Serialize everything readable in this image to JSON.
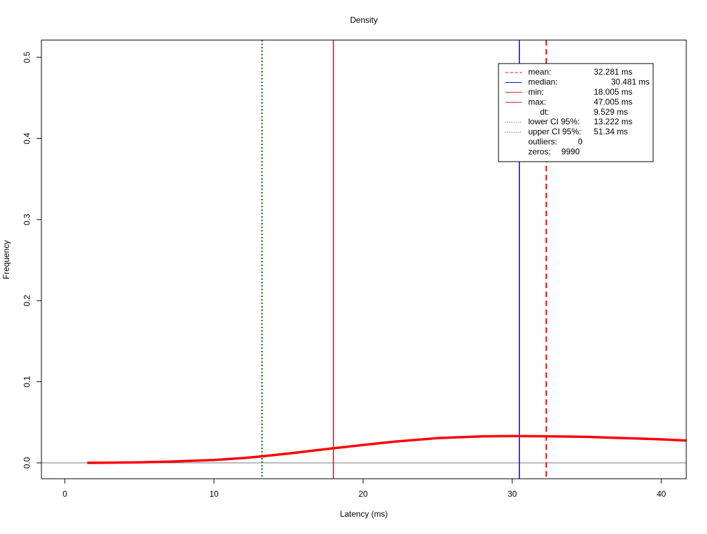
{
  "chart_data": {
    "type": "density",
    "title": "Density",
    "x_label": "Latency (ms)",
    "y_label": "Frequency",
    "xlim": [
      -1.57,
      41.67
    ],
    "ylim": [
      -0.0196,
      0.5213
    ],
    "xticks": [
      0,
      10,
      20,
      30,
      40
    ],
    "yticks": [
      {
        "value": 0,
        "label": "0.0"
      },
      0.1,
      0.2,
      0.3,
      0.4,
      0.5
    ],
    "series": [
      {
        "name": "density",
        "color": "#ff0000",
        "x": [
          1.5,
          3,
          5,
          7,
          10,
          12,
          13.2,
          15,
          18,
          20,
          22,
          25,
          28,
          30,
          32,
          35,
          38,
          40,
          41.67
        ],
        "values": [
          0.0,
          0.0002,
          0.0006,
          0.0015,
          0.0035,
          0.006,
          0.008,
          0.0115,
          0.018,
          0.022,
          0.026,
          0.0305,
          0.0327,
          0.033,
          0.0328,
          0.032,
          0.0302,
          0.029,
          0.0275
        ]
      }
    ],
    "legend": [
      {
        "label": "mean:",
        "value": 32.281,
        "value_label": "32.281 ms",
        "color": "#ff0000",
        "dash": "dashed"
      },
      {
        "label": "median:",
        "value": 30.481,
        "value_label": "30.481 ms",
        "color": "#0000ff",
        "dash": "solid"
      },
      {
        "label": "min:",
        "value": 18.005,
        "value_label": "18.005 ms",
        "color": "#b22222",
        "dash": "solid"
      },
      {
        "label": "max:",
        "value": 47.005,
        "value_label": "47.005 ms",
        "color": "#b22222",
        "dash": "solid"
      },
      {
        "label": "dt:",
        "value": 9.529,
        "value_label": "9.529 ms"
      },
      {
        "label": "lower CI 95%:",
        "value": 13.222,
        "value_label": "13.222 ms",
        "color": "#006400",
        "dash": "dotted"
      },
      {
        "label": "upper CI 95%:",
        "value": 51.34,
        "value_label": "51.34 ms",
        "color": "#006400",
        "dash": "dotted"
      },
      {
        "label": "outliers:",
        "value": 0
      },
      {
        "label": "zeros:",
        "value": 9990
      }
    ],
    "legend_position": "top-right"
  }
}
